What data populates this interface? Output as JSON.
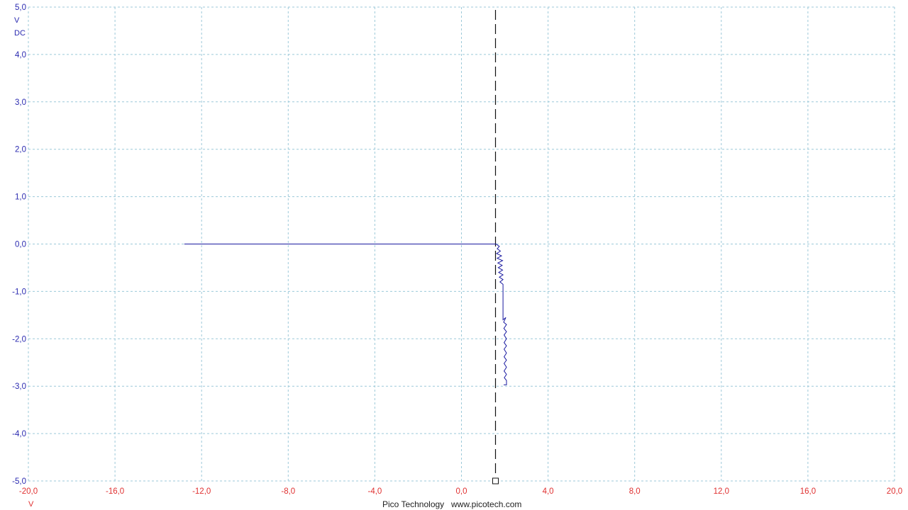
{
  "chart_data": {
    "type": "line",
    "x_axis": {
      "unit": "V",
      "range": [
        -20,
        20
      ],
      "ticks": [
        -20,
        -16,
        -12,
        -8,
        -4,
        0,
        4,
        8,
        12,
        16,
        20
      ],
      "tick_labels": [
        "-20,0",
        "-16,0",
        "-12,0",
        "-8,0",
        "-4,0",
        "0,0",
        "4,0",
        "8,0",
        "12,0",
        "16,0",
        "20,0"
      ],
      "color": "#e03030"
    },
    "y_axis": {
      "unit": "V",
      "coupling": "DC",
      "range": [
        -5,
        5
      ],
      "ticks": [
        5,
        4,
        3,
        2,
        1,
        0,
        -1,
        -2,
        -3,
        -4,
        -5
      ],
      "tick_labels": [
        "5,0",
        "4,0",
        "3,0",
        "2,0",
        "1,0",
        "0,0",
        "-1,0",
        "-2,0",
        "-3,0",
        "-4,0",
        "-5,0"
      ],
      "color": "#2a2ab0"
    },
    "grid": true,
    "cursor_x": 1.55,
    "series": [
      {
        "color": "#1a1aa0",
        "points": [
          [
            -12.8,
            0.0
          ],
          [
            1.6,
            0.0
          ],
          [
            1.75,
            -0.05
          ],
          [
            1.65,
            -0.1
          ],
          [
            1.8,
            -0.15
          ],
          [
            1.62,
            -0.2
          ],
          [
            1.85,
            -0.25
          ],
          [
            1.65,
            -0.3
          ],
          [
            1.9,
            -0.35
          ],
          [
            1.68,
            -0.4
          ],
          [
            1.88,
            -0.45
          ],
          [
            1.7,
            -0.5
          ],
          [
            1.9,
            -0.55
          ],
          [
            1.72,
            -0.6
          ],
          [
            1.92,
            -0.65
          ],
          [
            1.75,
            -0.7
          ],
          [
            1.92,
            -0.75
          ],
          [
            1.78,
            -0.8
          ],
          [
            1.92,
            -0.85
          ],
          [
            1.92,
            -0.9
          ],
          [
            1.92,
            -1.6
          ],
          [
            2.05,
            -1.55
          ],
          [
            1.95,
            -1.65
          ],
          [
            2.08,
            -1.7
          ],
          [
            1.96,
            -1.78
          ],
          [
            2.08,
            -1.85
          ],
          [
            1.97,
            -1.92
          ],
          [
            2.08,
            -2.0
          ],
          [
            1.97,
            -2.08
          ],
          [
            2.08,
            -2.15
          ],
          [
            1.97,
            -2.22
          ],
          [
            2.08,
            -2.3
          ],
          [
            1.97,
            -2.38
          ],
          [
            2.08,
            -2.45
          ],
          [
            1.97,
            -2.52
          ],
          [
            2.08,
            -2.6
          ],
          [
            1.97,
            -2.68
          ],
          [
            2.08,
            -2.75
          ],
          [
            1.98,
            -2.82
          ],
          [
            2.08,
            -2.88
          ],
          [
            2.08,
            -2.97
          ],
          [
            1.95,
            -2.97
          ]
        ]
      }
    ]
  },
  "footer": {
    "brand": "Pico Technology",
    "url": "www.picotech.com"
  }
}
